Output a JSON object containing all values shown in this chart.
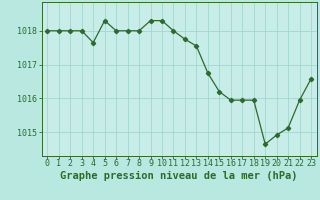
{
  "x": [
    0,
    1,
    2,
    3,
    4,
    5,
    6,
    7,
    8,
    9,
    10,
    11,
    12,
    13,
    14,
    15,
    16,
    17,
    18,
    19,
    20,
    21,
    22,
    23
  ],
  "y": [
    1018.0,
    1018.0,
    1018.0,
    1018.0,
    1017.65,
    1018.3,
    1018.0,
    1018.0,
    1018.0,
    1018.3,
    1018.3,
    1018.0,
    1017.75,
    1017.55,
    1016.75,
    1016.2,
    1015.95,
    1015.95,
    1015.95,
    1014.65,
    1014.92,
    1015.13,
    1015.95,
    1016.58
  ],
  "line_color": "#2d6a2d",
  "marker": "D",
  "marker_size": 2.2,
  "bg_color": "#b8e8e0",
  "plot_bg_color": "#c8ece8",
  "grid_color": "#a0d8d0",
  "xlabel": "Graphe pression niveau de la mer (hPa)",
  "xlabel_color": "#2d6a2d",
  "tick_color": "#2d6a2d",
  "spine_color": "#2d6a2d",
  "yticks": [
    1015,
    1016,
    1017,
    1018
  ],
  "xticks": [
    0,
    1,
    2,
    3,
    4,
    5,
    6,
    7,
    8,
    9,
    10,
    11,
    12,
    13,
    14,
    15,
    16,
    17,
    18,
    19,
    20,
    21,
    22,
    23
  ],
  "ylim": [
    1014.3,
    1018.85
  ],
  "xlim": [
    -0.5,
    23.5
  ],
  "xlabel_fontsize": 7.5,
  "tick_fontsize": 6.0,
  "xlabel_fontweight": "bold"
}
